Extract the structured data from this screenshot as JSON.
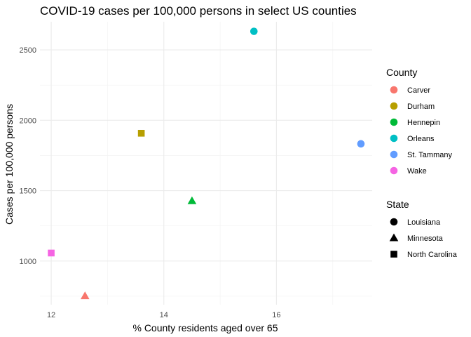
{
  "chart_data": {
    "type": "scatter",
    "title": "COVID-19 cases per 100,000 persons in select US counties",
    "xlabel": "% County residents aged over 65",
    "ylabel": "Cases per 100,000 persons",
    "xlim": [
      11.8,
      17.7
    ],
    "ylim": [
      690,
      2700
    ],
    "x_ticks": [
      12,
      14,
      16
    ],
    "x_tick_labels": [
      "12",
      "14",
      "16"
    ],
    "x_minor_ticks": [
      13,
      15,
      17
    ],
    "y_ticks": [
      1000,
      1500,
      2000,
      2500
    ],
    "y_tick_labels": [
      "1000",
      "1500",
      "2000",
      "2500"
    ],
    "y_minor_ticks": [
      750,
      1250,
      1750,
      2250
    ],
    "grid": true,
    "legend_position": "right",
    "color_legend": {
      "title": "County",
      "entries": [
        {
          "label": "Carver",
          "color": "#F8766D"
        },
        {
          "label": "Durham",
          "color": "#B79F00"
        },
        {
          "label": "Hennepin",
          "color": "#00BA38"
        },
        {
          "label": "Orleans",
          "color": "#00BFC4"
        },
        {
          "label": "St. Tammany",
          "color": "#619CFF"
        },
        {
          "label": "Wake",
          "color": "#F564E3"
        }
      ]
    },
    "shape_legend": {
      "title": "State",
      "entries": [
        {
          "label": "Louisiana",
          "shape": "circle"
        },
        {
          "label": "Minnesota",
          "shape": "triangle"
        },
        {
          "label": "North Carolina",
          "shape": "square"
        }
      ]
    },
    "points": [
      {
        "county": "Carver",
        "state": "Minnesota",
        "x": 12.6,
        "y": 752
      },
      {
        "county": "Durham",
        "state": "North Carolina",
        "x": 13.6,
        "y": 1908
      },
      {
        "county": "Hennepin",
        "state": "Minnesota",
        "x": 14.5,
        "y": 1427
      },
      {
        "county": "Orleans",
        "state": "Louisiana",
        "x": 15.6,
        "y": 2632
      },
      {
        "county": "St. Tammany",
        "state": "Louisiana",
        "x": 17.5,
        "y": 1833
      },
      {
        "county": "Wake",
        "state": "North Carolina",
        "x": 12.0,
        "y": 1057
      }
    ]
  }
}
